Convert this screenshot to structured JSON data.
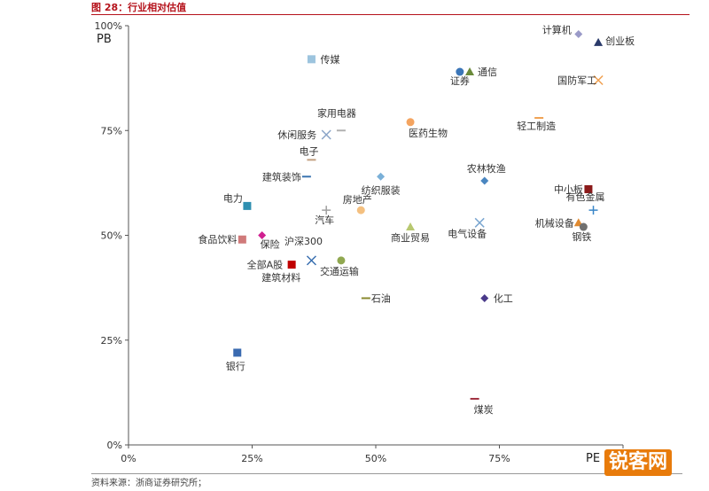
{
  "header": {
    "title": "图 28：行业相对估值"
  },
  "source": "资料来源：浙商证券研究所；",
  "watermark": "锐客网",
  "chart_data": {
    "type": "scatter",
    "xlabel": "PE",
    "ylabel": "PB",
    "xlim": [
      0,
      100
    ],
    "ylim": [
      0,
      100
    ],
    "x_ticks": [
      "0%",
      "25%",
      "50%",
      "75%"
    ],
    "y_ticks": [
      "0%",
      "25%",
      "50%",
      "75%",
      "100%"
    ],
    "grid": false,
    "points": [
      {
        "label": "计算机",
        "x": 91,
        "y": 98,
        "marker": "diamond",
        "color": "#9a9ac8"
      },
      {
        "label": "创业板",
        "x": 95,
        "y": 96,
        "marker": "triangle",
        "color": "#2a3a6a"
      },
      {
        "label": "传媒",
        "x": 37,
        "y": 92,
        "marker": "square",
        "color": "#9cc4de"
      },
      {
        "label": "证券",
        "x": 67,
        "y": 89,
        "marker": "circle",
        "color": "#3b76b8"
      },
      {
        "label": "通信",
        "x": 69,
        "y": 89,
        "marker": "triangle",
        "color": "#6a8a3a"
      },
      {
        "label": "国防军工",
        "x": 95,
        "y": 87,
        "marker": "x",
        "color": "#f0a050"
      },
      {
        "label": "家用电器",
        "x": 43,
        "y": 75,
        "marker": "dash",
        "color": "#b0b0b0"
      },
      {
        "label": "休闲服务",
        "x": 40,
        "y": 74,
        "marker": "x",
        "color": "#8aa4c8"
      },
      {
        "label": "医药生物",
        "x": 57,
        "y": 77,
        "marker": "circle",
        "color": "#f4a460"
      },
      {
        "label": "轻工制造",
        "x": 83,
        "y": 78,
        "marker": "dash",
        "color": "#f0a050"
      },
      {
        "label": "电子",
        "x": 37,
        "y": 68,
        "marker": "dash",
        "color": "#c2a080"
      },
      {
        "label": "农林牧渔",
        "x": 72,
        "y": 63,
        "marker": "diamond",
        "color": "#4a86c0"
      },
      {
        "label": "建筑装饰",
        "x": 36,
        "y": 64,
        "marker": "dash",
        "color": "#3a74b0"
      },
      {
        "label": "纺织服装",
        "x": 51,
        "y": 64,
        "marker": "diamond",
        "color": "#7ab0d8"
      },
      {
        "label": "中小板",
        "x": 93,
        "y": 61,
        "marker": "square",
        "color": "#8b1a1a"
      },
      {
        "label": "电力",
        "x": 24,
        "y": 57,
        "marker": "square",
        "color": "#2f8fb0"
      },
      {
        "label": "房地产",
        "x": 47,
        "y": 56,
        "marker": "circle",
        "color": "#f4c080"
      },
      {
        "label": "汽车",
        "x": 40,
        "y": 56,
        "marker": "plus",
        "color": "#a0a0a0"
      },
      {
        "label": "有色金属",
        "x": 94,
        "y": 56,
        "marker": "plus",
        "color": "#3a86c8"
      },
      {
        "label": "机械设备",
        "x": 91,
        "y": 53,
        "marker": "triangle",
        "color": "#e08a30"
      },
      {
        "label": "电气设备",
        "x": 71,
        "y": 53,
        "marker": "x",
        "color": "#7aa6d0"
      },
      {
        "label": "商业贸易",
        "x": 57,
        "y": 52,
        "marker": "triangle",
        "color": "#b8c870"
      },
      {
        "label": "钢铁",
        "x": 92,
        "y": 52,
        "marker": "circle",
        "color": "#707070"
      },
      {
        "label": "保险",
        "x": 27,
        "y": 50,
        "marker": "diamond",
        "color": "#d02090"
      },
      {
        "label": "食品饮料",
        "x": 23,
        "y": 49,
        "marker": "square",
        "color": "#d07a7a"
      },
      {
        "label": "沪深300",
        "x": 37,
        "y": 44,
        "marker": "x",
        "color": "#3a70b0"
      },
      {
        "label": "全部A股",
        "x": 33,
        "y": 43,
        "marker": "square",
        "color": "#c00000"
      },
      {
        "label": "交通运输",
        "x": 43,
        "y": 44,
        "marker": "circle",
        "color": "#90a850"
      },
      {
        "label": "建筑材料",
        "x": 35,
        "y": 40,
        "marker": "none",
        "color": "#444444"
      },
      {
        "label": "石油",
        "x": 48,
        "y": 35,
        "marker": "dash",
        "color": "#8a8a30"
      },
      {
        "label": "化工",
        "x": 72,
        "y": 35,
        "marker": "diamond",
        "color": "#4a3a8a"
      },
      {
        "label": "银行",
        "x": 22,
        "y": 22,
        "marker": "square",
        "color": "#3a6ab0"
      },
      {
        "label": "煤炭",
        "x": 70,
        "y": 11,
        "marker": "dash",
        "color": "#a03040"
      }
    ]
  }
}
